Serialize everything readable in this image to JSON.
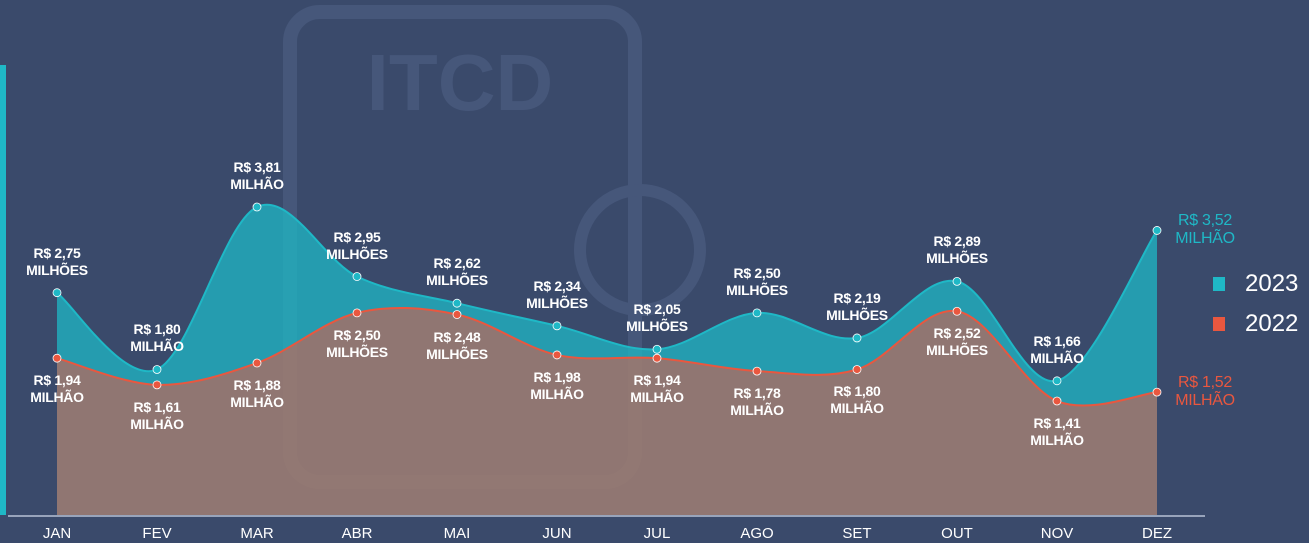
{
  "watermark": "ITCD",
  "chart_data": {
    "type": "area-line",
    "categories": [
      "JAN",
      "FEV",
      "MAR",
      "ABR",
      "MAI",
      "JUN",
      "JUL",
      "AGO",
      "SET",
      "OUT",
      "NOV",
      "DEZ"
    ],
    "series": [
      {
        "name": "2023",
        "color": "#1fb8c6",
        "values": [
          2.75,
          1.8,
          3.81,
          2.95,
          2.62,
          2.34,
          2.05,
          2.5,
          2.19,
          2.89,
          1.66,
          3.52
        ],
        "value_labels": [
          "R$ 2,75\nMILHÕES",
          "R$ 1,80\nMILHÃO",
          "R$ 3,81\nMILHÃO",
          "R$ 2,95\nMILHÕES",
          "R$ 2,62\nMILHÕES",
          "R$ 2,34\nMILHÕES",
          "R$ 2,05\nMILHÕES",
          "R$ 2,50\nMILHÕES",
          "R$ 2,19\nMILHÕES",
          "R$ 2,89\nMILHÕES",
          "R$ 1,66\nMILHÃO",
          "R$ 3,52\nMILHÃO"
        ]
      },
      {
        "name": "2022",
        "color": "#e9573f",
        "values": [
          1.94,
          1.61,
          1.88,
          2.5,
          2.48,
          1.98,
          1.94,
          1.78,
          1.8,
          2.52,
          1.41,
          1.52
        ],
        "value_labels": [
          "R$ 1,94\nMILHÃO",
          "R$ 1,61\nMILHÃO",
          "R$ 1,88\nMILHÃO",
          "R$ 2,50\nMILHÕES",
          "R$ 2,48\nMILHÕES",
          "R$ 1,98\nMILHÃO",
          "R$ 1,94\nMILHÃO",
          "R$ 1,78\nMILHÃO",
          "R$ 1,80\nMILHÃO",
          "R$ 2,52\nMILHÕES",
          "R$ 1,41\nMILHÃO",
          "R$ 1,52\nMILHÃO"
        ]
      }
    ]
  }
}
